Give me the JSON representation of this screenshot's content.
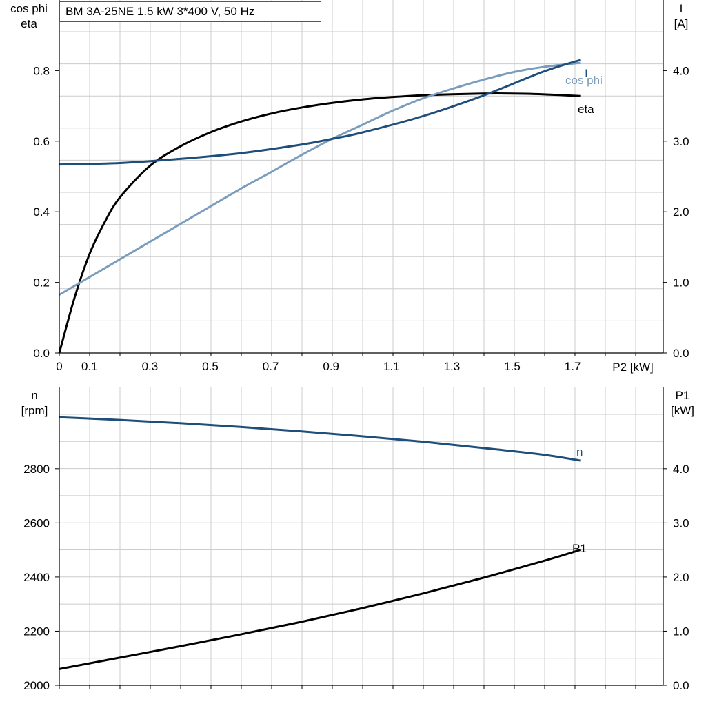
{
  "title": "BM 3A-25NE   1.5 kW   3*400 V, 50 Hz",
  "colors": {
    "I": "#1f4e7a",
    "cosphi": "#7a9dbd",
    "eta": "#000000",
    "n": "#1f4e7a",
    "P1": "#000000",
    "grid": "#cccccc",
    "axis": "#000000"
  },
  "chart_data": [
    {
      "type": "line",
      "x_axis": {
        "label_unit": "P2 [kW]",
        "range": [
          0,
          2.0
        ],
        "tick_labels": [
          "0",
          "0.1",
          "0.3",
          "0.5",
          "0.7",
          "0.9",
          "1.1",
          "1.3",
          "1.5",
          "1.7"
        ],
        "tick_values": [
          0,
          0.1,
          0.3,
          0.5,
          0.7,
          0.9,
          1.1,
          1.3,
          1.5,
          1.7
        ]
      },
      "y_left": {
        "label_line1": "cos phi",
        "label_line2": "eta",
        "range": [
          0,
          1.0
        ],
        "tick_labels": [
          "0.0",
          "0.2",
          "0.4",
          "0.6",
          "0.8"
        ],
        "tick_values": [
          0,
          0.2,
          0.4,
          0.6,
          0.8
        ]
      },
      "y_right": {
        "label_line1": "I",
        "label_line2": "[A]",
        "range": [
          0,
          5.0
        ],
        "tick_labels": [
          "0.0",
          "1.0",
          "2.0",
          "3.0",
          "4.0"
        ],
        "tick_values": [
          0,
          1,
          2,
          3,
          4
        ]
      },
      "grid": true,
      "series": [
        {
          "name": "eta",
          "axis": "left",
          "label": "eta",
          "x": [
            0,
            0.05,
            0.1,
            0.15,
            0.2,
            0.3,
            0.4,
            0.5,
            0.6,
            0.7,
            0.8,
            0.9,
            1.0,
            1.1,
            1.2,
            1.3,
            1.4,
            1.5,
            1.6,
            1.725
          ],
          "y": [
            0,
            0.155,
            0.28,
            0.37,
            0.44,
            0.53,
            0.585,
            0.625,
            0.655,
            0.678,
            0.695,
            0.708,
            0.718,
            0.725,
            0.73,
            0.733,
            0.735,
            0.735,
            0.733,
            0.728
          ]
        },
        {
          "name": "cos phi",
          "axis": "left",
          "label": "cos phi",
          "x": [
            0,
            0.1,
            0.2,
            0.3,
            0.4,
            0.5,
            0.6,
            0.7,
            0.8,
            0.9,
            1.0,
            1.1,
            1.2,
            1.3,
            1.4,
            1.5,
            1.6,
            1.725
          ],
          "y": [
            0.165,
            0.215,
            0.265,
            0.315,
            0.365,
            0.415,
            0.465,
            0.512,
            0.56,
            0.605,
            0.645,
            0.685,
            0.72,
            0.748,
            0.773,
            0.795,
            0.81,
            0.822
          ]
        },
        {
          "name": "I",
          "axis": "right",
          "label": "I",
          "x": [
            0,
            0.2,
            0.4,
            0.6,
            0.8,
            0.9,
            1.0,
            1.2,
            1.4,
            1.6,
            1.725
          ],
          "y": [
            2.67,
            2.69,
            2.75,
            2.83,
            2.95,
            3.03,
            3.12,
            3.35,
            3.64,
            3.98,
            4.15
          ]
        }
      ]
    },
    {
      "type": "line",
      "x_axis": {
        "range": [
          0,
          2.0
        ],
        "tick_values": [
          0,
          0.1,
          0.3,
          0.5,
          0.7,
          0.9,
          1.1,
          1.3,
          1.5,
          1.7
        ]
      },
      "y_left": {
        "label_line1": "n",
        "label_line2": "[rpm]",
        "range": [
          2000,
          3100
        ],
        "tick_labels": [
          "2000",
          "2200",
          "2400",
          "2600",
          "2800"
        ],
        "tick_values": [
          2000,
          2200,
          2400,
          2600,
          2800
        ]
      },
      "y_right": {
        "label_line1": "P1",
        "label_line2": "[kW]",
        "range": [
          0,
          5.5
        ],
        "tick_labels": [
          "0.0",
          "1.0",
          "2.0",
          "3.0",
          "4.0"
        ],
        "tick_values": [
          0,
          1,
          2,
          3,
          4
        ]
      },
      "grid": true,
      "series": [
        {
          "name": "n",
          "axis": "left",
          "label": "n",
          "x": [
            0,
            0.2,
            0.4,
            0.6,
            0.8,
            1.0,
            1.2,
            1.4,
            1.6,
            1.725
          ],
          "y": [
            2990,
            2980,
            2968,
            2954,
            2938,
            2920,
            2900,
            2877,
            2852,
            2830
          ]
        },
        {
          "name": "P1",
          "axis": "right",
          "label": "P1",
          "x": [
            0,
            0.2,
            0.4,
            0.6,
            0.8,
            1.0,
            1.2,
            1.4,
            1.6,
            1.725
          ],
          "y": [
            0.3,
            0.51,
            0.72,
            0.94,
            1.17,
            1.42,
            1.69,
            1.98,
            2.29,
            2.5
          ]
        }
      ]
    }
  ]
}
